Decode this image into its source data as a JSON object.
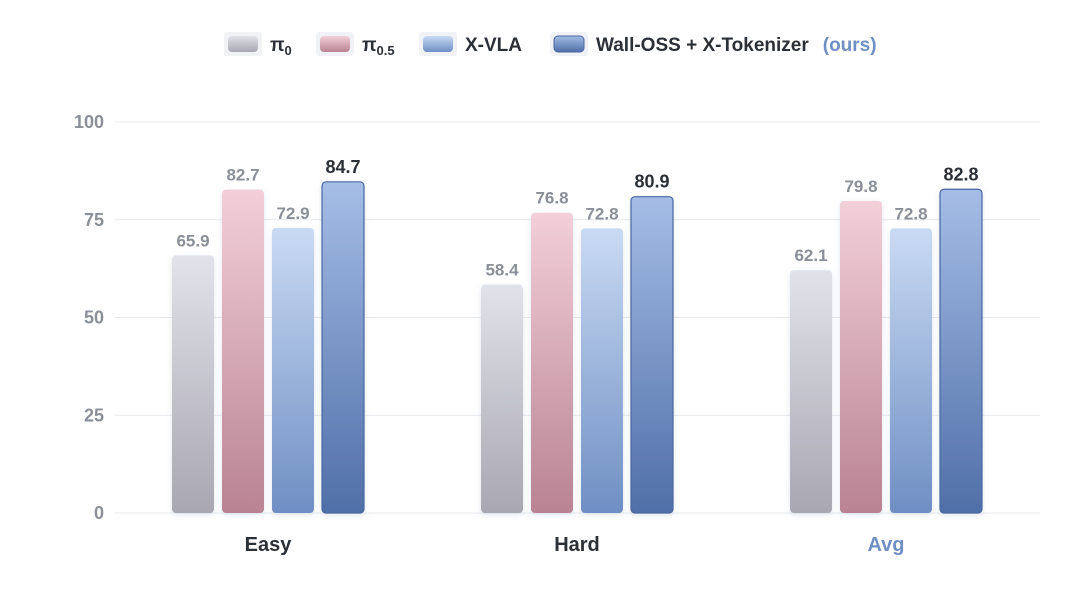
{
  "chart_data": {
    "type": "bar",
    "categories": [
      "Easy",
      "Hard",
      "Avg"
    ],
    "highlight_category": "Avg",
    "ylim": [
      0,
      100
    ],
    "yticks": [
      0,
      25,
      50,
      75,
      100
    ],
    "grid": true,
    "legend_position": "top-center",
    "series": [
      {
        "name": "π",
        "name_subscript": "0",
        "values": [
          65.9,
          58.4,
          62.1
        ],
        "color_top": "#e1e2ea",
        "color_bottom": "#a9a7b1"
      },
      {
        "name": "π",
        "name_subscript": "0.5",
        "values": [
          82.7,
          76.8,
          79.8
        ],
        "color_top": "#f2cfd9",
        "color_bottom": "#b98393"
      },
      {
        "name": "X-VLA",
        "values": [
          72.9,
          72.8,
          72.8
        ],
        "color_top": "#c9daf3",
        "color_bottom": "#6f8fc4"
      },
      {
        "name": "Wall-OSS + X-Tokenizer",
        "name_suffix": "(ours)",
        "values": [
          84.7,
          80.9,
          82.8
        ],
        "color_top": "#a5bde6",
        "color_bottom": "#4f6fa8",
        "highlight": true
      }
    ]
  }
}
